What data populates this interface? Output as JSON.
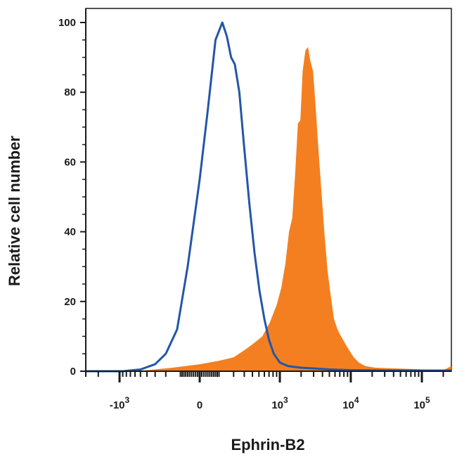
{
  "chart_data": {
    "type": "area",
    "title": "",
    "xlabel": "Ephrin-B2",
    "ylabel": "Relative cell number",
    "x_scale": "biexponential",
    "ylim": [
      0,
      100
    ],
    "y_ticks": [
      {
        "value": 0,
        "label": "0"
      },
      {
        "value": 20,
        "label": "20"
      },
      {
        "value": 40,
        "label": "40"
      },
      {
        "value": 60,
        "label": "60"
      },
      {
        "value": 80,
        "label": "80"
      },
      {
        "value": 100,
        "label": "100"
      }
    ],
    "x_ticks": [
      {
        "value": -1000,
        "base": "-10",
        "exp": "3"
      },
      {
        "value": 0,
        "base": "0",
        "exp": ""
      },
      {
        "value": 1000,
        "base": "10",
        "exp": "3"
      },
      {
        "value": 10000,
        "base": "10",
        "exp": "4"
      },
      {
        "value": 100000,
        "base": "10",
        "exp": "5"
      }
    ],
    "grid": false,
    "legend": "none",
    "series": [
      {
        "style": "filled",
        "color": "#f47f20",
        "x": [
          -3000,
          -800,
          -400,
          -150,
          0,
          100,
          200,
          300,
          420,
          560,
          720,
          900,
          1050,
          1200,
          1350,
          1500,
          1650,
          1800,
          1950,
          2100,
          2300,
          2500,
          2700,
          2950,
          3200,
          3500,
          3850,
          4250,
          4700,
          5200,
          5800,
          6500,
          7300,
          8300,
          9500,
          11000,
          13000,
          16000,
          22000,
          40000,
          80000,
          200000,
          260000
        ],
        "y": [
          0,
          0,
          0.3,
          1,
          2,
          3,
          4,
          6,
          8,
          10,
          14,
          19,
          24,
          31,
          40,
          44,
          57,
          71,
          72,
          86,
          92,
          93,
          89,
          86,
          76,
          64,
          52,
          40,
          29,
          22,
          15,
          12,
          10,
          8,
          6,
          4,
          2.5,
          1.5,
          1,
          0.8,
          0.6,
          0.3,
          1.5
        ]
      },
      {
        "style": "line",
        "color": "#2356a8",
        "x": [
          -3000,
          -900,
          -500,
          -300,
          -200,
          -120,
          -60,
          0,
          40,
          80,
          120,
          150,
          180,
          210,
          250,
          300,
          360,
          430,
          510,
          600,
          700,
          820,
          1000,
          1300,
          2000,
          3000,
          5000,
          10000,
          50000,
          260000
        ],
        "y": [
          0,
          0,
          0.5,
          2,
          5,
          12,
          30,
          55,
          75,
          95,
          100,
          96,
          90,
          88,
          80,
          64,
          48,
          34,
          23,
          15,
          9,
          5,
          2.5,
          1.5,
          1,
          0.8,
          0.5,
          0.3,
          0.2,
          0.2
        ]
      }
    ]
  }
}
